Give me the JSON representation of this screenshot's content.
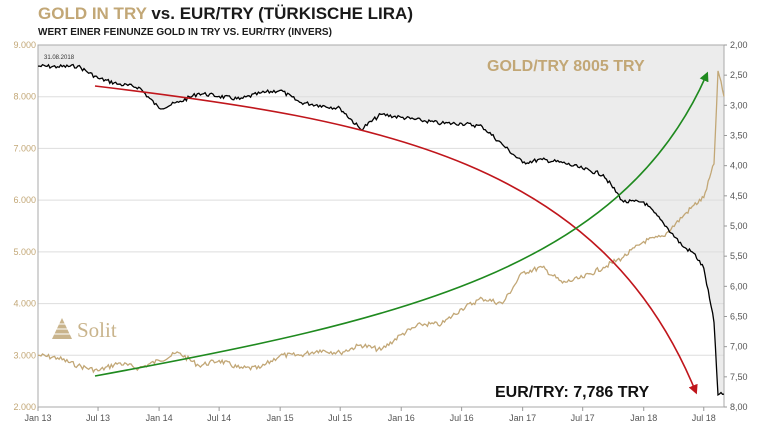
{
  "header": {
    "title_gold": "GOLD IN TRY",
    "title_rest": " vs. EUR/TRY (TÜRKISCHE LIRA)",
    "subtitle": "WERT EINER FEINUNZE GOLD IN TRY VS. EUR/TRY (INVERS)"
  },
  "logo": {
    "text": "Solit"
  },
  "colors": {
    "gold": "#c2a776",
    "eurtry": "#000000",
    "trend_red": "#c0161c",
    "trend_green": "#1f8a1f",
    "shade": "#ececec"
  },
  "chart_data": {
    "type": "line",
    "date_label": "31.08.2018",
    "annotations": {
      "gold_try": "GOLD/TRY 8005 TRY",
      "eur_try": "EUR/TRY: 7,786 TRY"
    },
    "x_ticks": [
      "Jan 13",
      "Jul 13",
      "Jan 14",
      "Jul 14",
      "Jan 15",
      "Jul 15",
      "Jan 16",
      "Jul 16",
      "Jan 17",
      "Jul 17",
      "Jan 18",
      "Jul 18"
    ],
    "x_range": [
      "2013-01-01",
      "2018-08-31"
    ],
    "y_left": {
      "ticks": [
        "2.000",
        "3.000",
        "4.000",
        "5.000",
        "6.000",
        "7.000",
        "8.000",
        "9.000"
      ],
      "range": [
        2000,
        9000
      ]
    },
    "y_right": {
      "ticks": [
        "2,00",
        "2,50",
        "3,00",
        "3,50",
        "4,00",
        "4,50",
        "5,00",
        "5,50",
        "6,00",
        "6,50",
        "7,00",
        "7,50",
        "8,00"
      ],
      "range": [
        2.0,
        8.0
      ],
      "inverted": true
    },
    "series": [
      {
        "name": "Gold in TRY",
        "axis": "left",
        "x": [
          "2013-01",
          "2013-03",
          "2013-05",
          "2013-07",
          "2013-09",
          "2013-11",
          "2014-01",
          "2014-03",
          "2014-05",
          "2014-07",
          "2014-09",
          "2014-11",
          "2015-01",
          "2015-03",
          "2015-05",
          "2015-07",
          "2015-09",
          "2015-11",
          "2016-01",
          "2016-03",
          "2016-05",
          "2016-07",
          "2016-09",
          "2016-11",
          "2017-01",
          "2017-03",
          "2017-05",
          "2017-07",
          "2017-09",
          "2017-11",
          "2018-01",
          "2018-03",
          "2018-05",
          "2018-06",
          "2018-07",
          "2018-08",
          "2018-08-13",
          "2018-08-31"
        ],
        "values": [
          3000,
          2950,
          2800,
          2700,
          2850,
          2750,
          2900,
          3050,
          2800,
          2900,
          2750,
          2750,
          3000,
          3000,
          3100,
          3050,
          3200,
          3100,
          3400,
          3600,
          3600,
          3900,
          4100,
          4000,
          4600,
          4700,
          4400,
          4500,
          4700,
          4900,
          5200,
          5300,
          5700,
          5900,
          6050,
          6700,
          8500,
          8005
        ]
      },
      {
        "name": "EUR/TRY (invers)",
        "axis": "right",
        "x": [
          "2013-01",
          "2013-03",
          "2013-05",
          "2013-07",
          "2013-09",
          "2013-11",
          "2014-01",
          "2014-03",
          "2014-05",
          "2014-07",
          "2014-09",
          "2014-11",
          "2015-01",
          "2015-03",
          "2015-05",
          "2015-07",
          "2015-09",
          "2015-11",
          "2016-01",
          "2016-03",
          "2016-05",
          "2016-07",
          "2016-09",
          "2016-11",
          "2017-01",
          "2017-03",
          "2017-05",
          "2017-07",
          "2017-09",
          "2017-11",
          "2018-01",
          "2018-03",
          "2018-05",
          "2018-06",
          "2018-07",
          "2018-08",
          "2018-08-13",
          "2018-08-31"
        ],
        "values": [
          2.35,
          2.36,
          2.35,
          2.55,
          2.65,
          2.7,
          3.05,
          2.95,
          2.8,
          2.85,
          2.9,
          2.8,
          2.75,
          2.95,
          3.0,
          3.05,
          3.4,
          3.15,
          3.2,
          3.25,
          3.3,
          3.3,
          3.35,
          3.65,
          3.95,
          3.9,
          3.95,
          4.05,
          4.15,
          4.6,
          4.6,
          4.95,
          5.35,
          5.45,
          5.7,
          6.6,
          7.8,
          7.786
        ]
      }
    ]
  }
}
